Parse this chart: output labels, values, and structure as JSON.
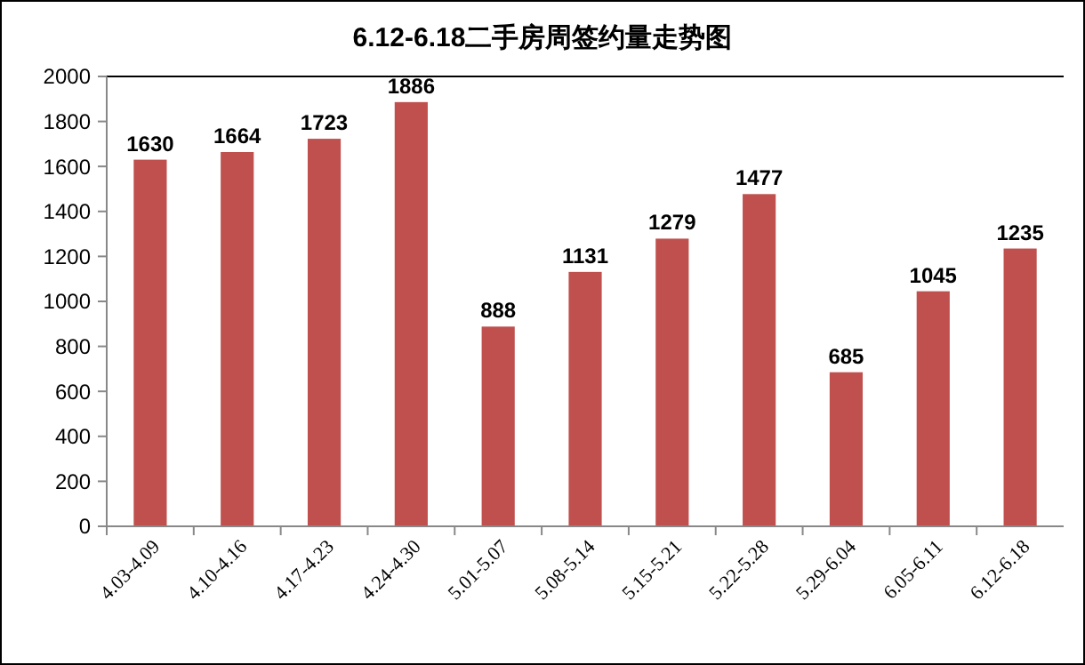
{
  "chart_data": {
    "type": "bar",
    "title": "6.12-6.18二手房周签约量走势图",
    "categories": [
      "4.03-4.09",
      "4.10-4.16",
      "4.17-4.23",
      "4.24-4.30",
      "5.01-5.07",
      "5.08-5.14",
      "5.15-5.21",
      "5.22-5.28",
      "5.29-6.04",
      "6.05-6.11",
      "6.12-6.18"
    ],
    "values": [
      1630,
      1664,
      1723,
      1886,
      888,
      1131,
      1279,
      1477,
      685,
      1045,
      1235
    ],
    "color": "#c0504d",
    "ylim": [
      0,
      2000
    ],
    "yticks": [
      0,
      200,
      400,
      600,
      800,
      1000,
      1200,
      1400,
      1600,
      1800,
      2000
    ],
    "grid": false,
    "data_labels": true
  }
}
